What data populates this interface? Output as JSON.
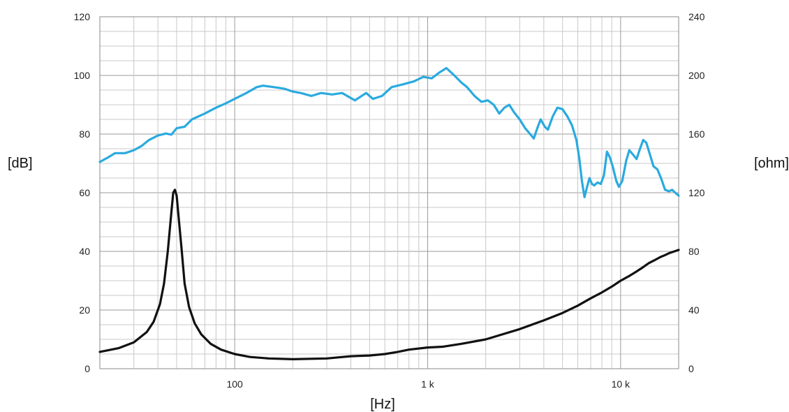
{
  "chart_data": {
    "type": "line",
    "xlabel": "[Hz]",
    "ylabel": "[dB]",
    "y2label": "[ohm]",
    "x_scale": "log",
    "xlim": [
      20,
      20000
    ],
    "ylim": [
      0,
      120
    ],
    "y2lim": [
      0,
      240
    ],
    "x_ticks": [
      {
        "value": 100,
        "label": "100"
      },
      {
        "value": 1000,
        "label": "1 k"
      },
      {
        "value": 10000,
        "label": "10 k"
      }
    ],
    "y_ticks": [
      "0",
      "20",
      "40",
      "60",
      "80",
      "100",
      "120"
    ],
    "y2_ticks": [
      "0",
      "40",
      "80",
      "120",
      "160",
      "200",
      "240"
    ],
    "grid": true,
    "series": [
      {
        "axis": "left",
        "color": "#2aaadf",
        "points": [
          [
            20,
            70.5
          ],
          [
            22,
            72
          ],
          [
            24,
            73.5
          ],
          [
            27,
            73.5
          ],
          [
            30,
            74.5
          ],
          [
            33,
            76
          ],
          [
            36,
            78
          ],
          [
            40,
            79.5
          ],
          [
            44,
            80.2
          ],
          [
            47,
            79.8
          ],
          [
            50,
            82
          ],
          [
            55,
            82.5
          ],
          [
            60,
            85
          ],
          [
            70,
            87
          ],
          [
            80,
            89
          ],
          [
            90,
            90.5
          ],
          [
            100,
            92
          ],
          [
            115,
            94
          ],
          [
            130,
            96
          ],
          [
            140,
            96.5
          ],
          [
            160,
            96
          ],
          [
            180,
            95.5
          ],
          [
            200,
            94.5
          ],
          [
            220,
            94
          ],
          [
            250,
            93
          ],
          [
            280,
            94
          ],
          [
            320,
            93.5
          ],
          [
            360,
            94
          ],
          [
            420,
            91.5
          ],
          [
            480,
            94
          ],
          [
            520,
            92
          ],
          [
            580,
            93
          ],
          [
            650,
            96
          ],
          [
            750,
            97
          ],
          [
            850,
            98
          ],
          [
            950,
            99.5
          ],
          [
            1050,
            99
          ],
          [
            1150,
            101
          ],
          [
            1250,
            102.5
          ],
          [
            1350,
            100.5
          ],
          [
            1500,
            97.5
          ],
          [
            1600,
            96
          ],
          [
            1750,
            93
          ],
          [
            1900,
            91
          ],
          [
            2050,
            91.5
          ],
          [
            2200,
            90
          ],
          [
            2350,
            87
          ],
          [
            2500,
            89
          ],
          [
            2650,
            90
          ],
          [
            2800,
            87.5
          ],
          [
            3000,
            85
          ],
          [
            3200,
            82
          ],
          [
            3400,
            80
          ],
          [
            3550,
            78.5
          ],
          [
            3700,
            82
          ],
          [
            3850,
            85
          ],
          [
            4050,
            82.5
          ],
          [
            4200,
            81.5
          ],
          [
            4450,
            86
          ],
          [
            4700,
            89
          ],
          [
            5000,
            88.5
          ],
          [
            5300,
            86
          ],
          [
            5600,
            83
          ],
          [
            5900,
            78
          ],
          [
            6100,
            72
          ],
          [
            6300,
            64
          ],
          [
            6500,
            58.5
          ],
          [
            6700,
            62
          ],
          [
            6900,
            65
          ],
          [
            7100,
            63
          ],
          [
            7300,
            62.5
          ],
          [
            7600,
            63.5
          ],
          [
            7900,
            63
          ],
          [
            8200,
            66
          ],
          [
            8500,
            74
          ],
          [
            8800,
            72
          ],
          [
            9100,
            69
          ],
          [
            9500,
            64
          ],
          [
            9800,
            62
          ],
          [
            10200,
            64
          ],
          [
            10700,
            71
          ],
          [
            11100,
            74.5
          ],
          [
            11600,
            73
          ],
          [
            12100,
            71.5
          ],
          [
            12600,
            75
          ],
          [
            13100,
            78
          ],
          [
            13600,
            77
          ],
          [
            14200,
            73
          ],
          [
            14800,
            69
          ],
          [
            15500,
            68
          ],
          [
            16200,
            65
          ],
          [
            17000,
            61
          ],
          [
            17800,
            60.5
          ],
          [
            18500,
            61
          ],
          [
            19200,
            60
          ],
          [
            20000,
            59
          ]
        ]
      },
      {
        "axis": "right",
        "color": "#111111",
        "points": [
          [
            20,
            11.5
          ],
          [
            25,
            14
          ],
          [
            30,
            18
          ],
          [
            35,
            25
          ],
          [
            38,
            32
          ],
          [
            41,
            44
          ],
          [
            43,
            58
          ],
          [
            45,
            80
          ],
          [
            47,
            107
          ],
          [
            48,
            120
          ],
          [
            49,
            122
          ],
          [
            50,
            118
          ],
          [
            51,
            106
          ],
          [
            53,
            82
          ],
          [
            55,
            58
          ],
          [
            58,
            42
          ],
          [
            62,
            31
          ],
          [
            67,
            23.5
          ],
          [
            75,
            17
          ],
          [
            85,
            13
          ],
          [
            100,
            10
          ],
          [
            120,
            8
          ],
          [
            150,
            7
          ],
          [
            200,
            6.5
          ],
          [
            300,
            7
          ],
          [
            400,
            8.5
          ],
          [
            500,
            9
          ],
          [
            600,
            10
          ],
          [
            700,
            11.5
          ],
          [
            800,
            13
          ],
          [
            1000,
            14.5
          ],
          [
            1200,
            15
          ],
          [
            1500,
            17
          ],
          [
            2000,
            20
          ],
          [
            3000,
            27
          ],
          [
            4000,
            33
          ],
          [
            5000,
            38
          ],
          [
            6000,
            43
          ],
          [
            7000,
            48
          ],
          [
            8000,
            52
          ],
          [
            9000,
            56
          ],
          [
            10000,
            60
          ],
          [
            11000,
            63
          ],
          [
            12000,
            66
          ],
          [
            13000,
            69
          ],
          [
            14000,
            72
          ],
          [
            15000,
            74
          ],
          [
            16000,
            76
          ],
          [
            17000,
            77.5
          ],
          [
            18000,
            79
          ],
          [
            19000,
            80
          ],
          [
            20000,
            81
          ]
        ]
      }
    ]
  }
}
